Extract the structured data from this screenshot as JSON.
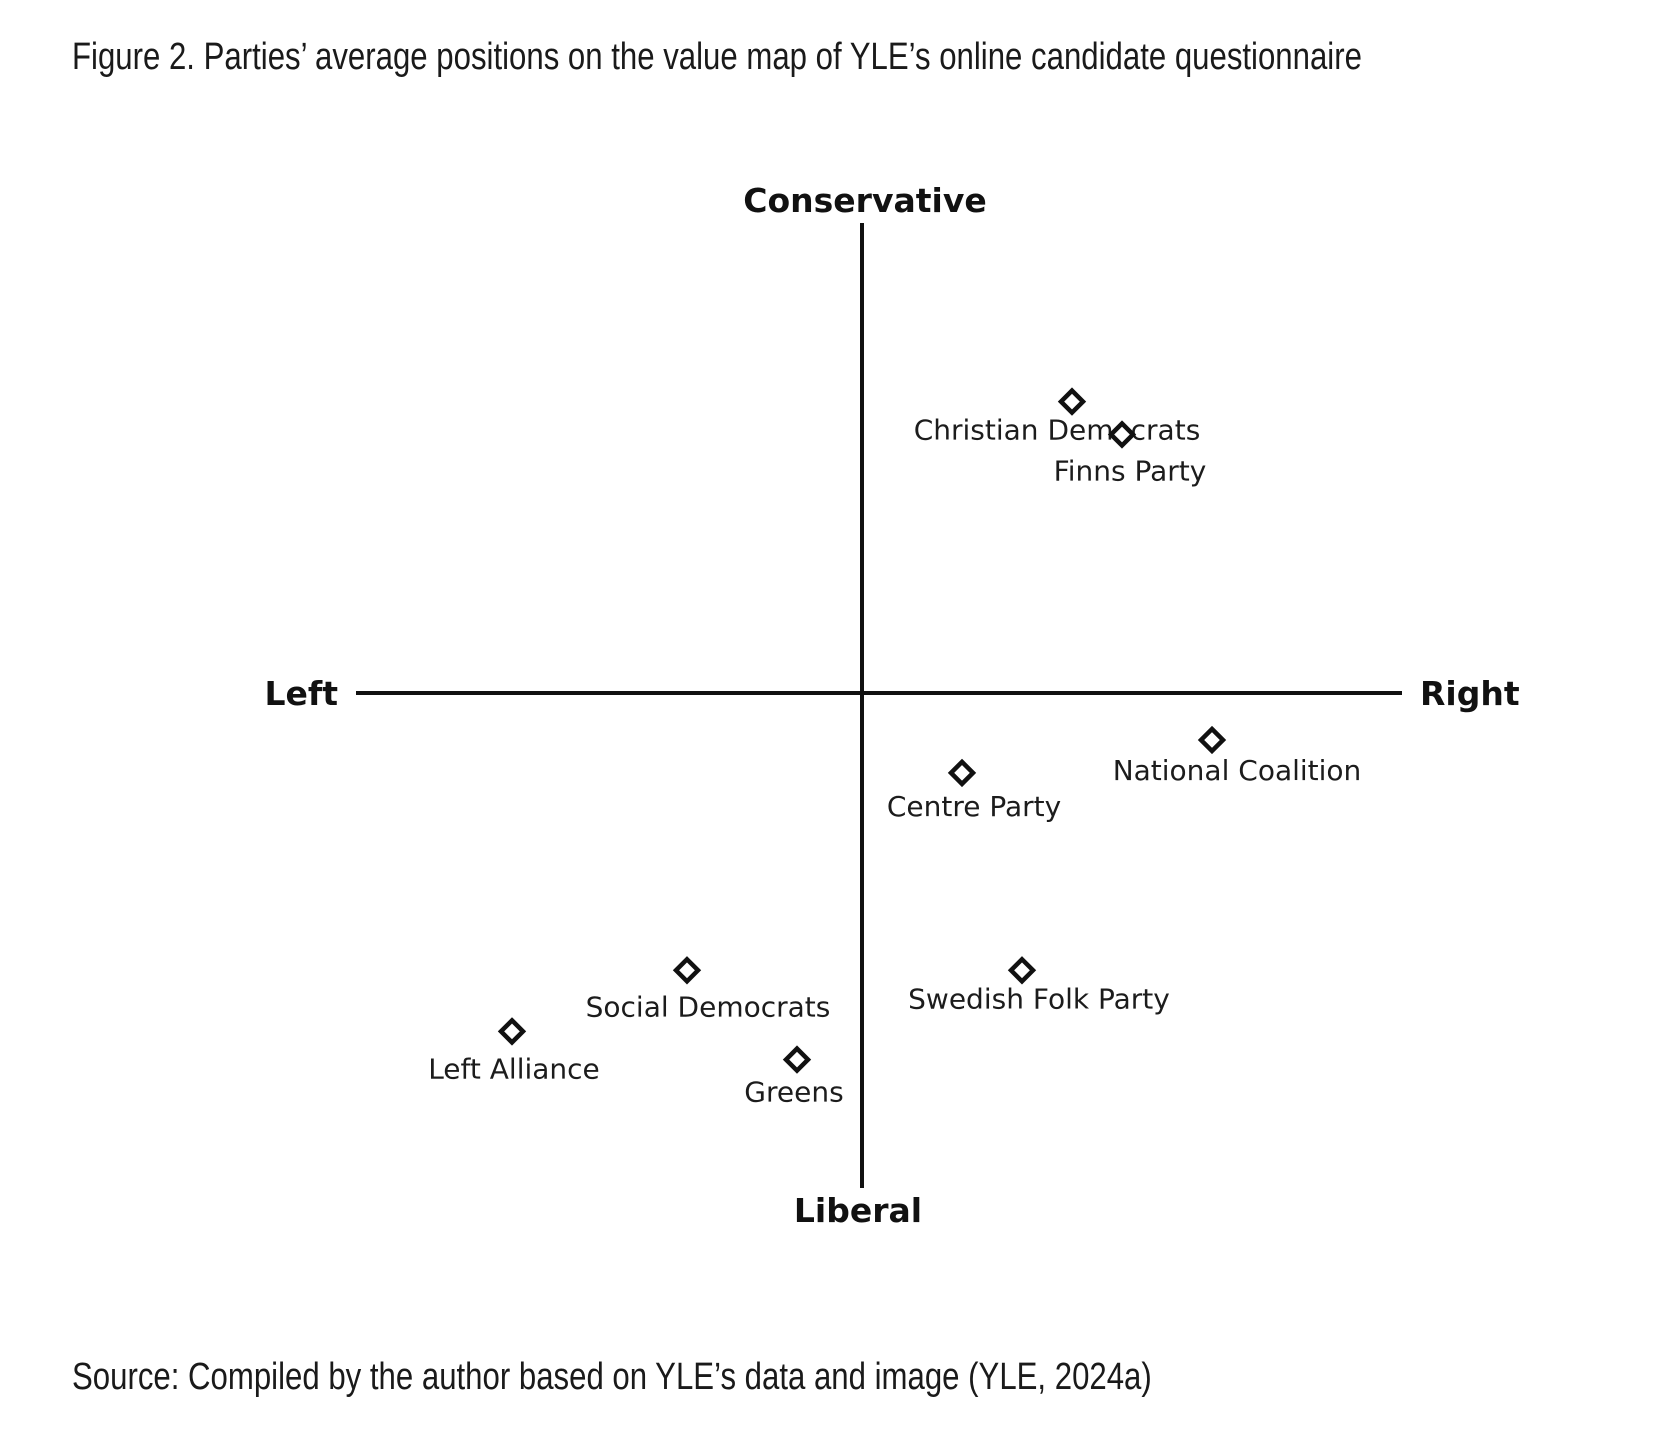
{
  "title": "Figure 2. Parties’ average positions on the value map of YLE’s online candidate questionnaire",
  "source": "Source: Compiled by the author based on YLE’s data and image (YLE, 2024a)",
  "chart_data": {
    "type": "scatter",
    "axis_labels": {
      "top": "Conservative",
      "bottom": "Liberal",
      "left": "Left",
      "right": "Right"
    },
    "xlim": [
      -1,
      1
    ],
    "ylim": [
      -1,
      1
    ],
    "grid": false,
    "marker": "diamond",
    "points": [
      {
        "label": "Christian Democrats",
        "x": 0.42,
        "y": 0.62
      },
      {
        "label": "Finns Party",
        "x": 0.52,
        "y": 0.55
      },
      {
        "label": "National Coalition",
        "x": 0.7,
        "y": -0.1
      },
      {
        "label": "Centre Party",
        "x": 0.2,
        "y": -0.17
      },
      {
        "label": "Swedish Folk Party",
        "x": 0.32,
        "y": -0.59
      },
      {
        "label": "Social Democrats",
        "x": -0.35,
        "y": -0.59
      },
      {
        "label": "Left Alliance",
        "x": -0.7,
        "y": -0.72
      },
      {
        "label": "Greens",
        "x": -0.13,
        "y": -0.78
      }
    ]
  }
}
